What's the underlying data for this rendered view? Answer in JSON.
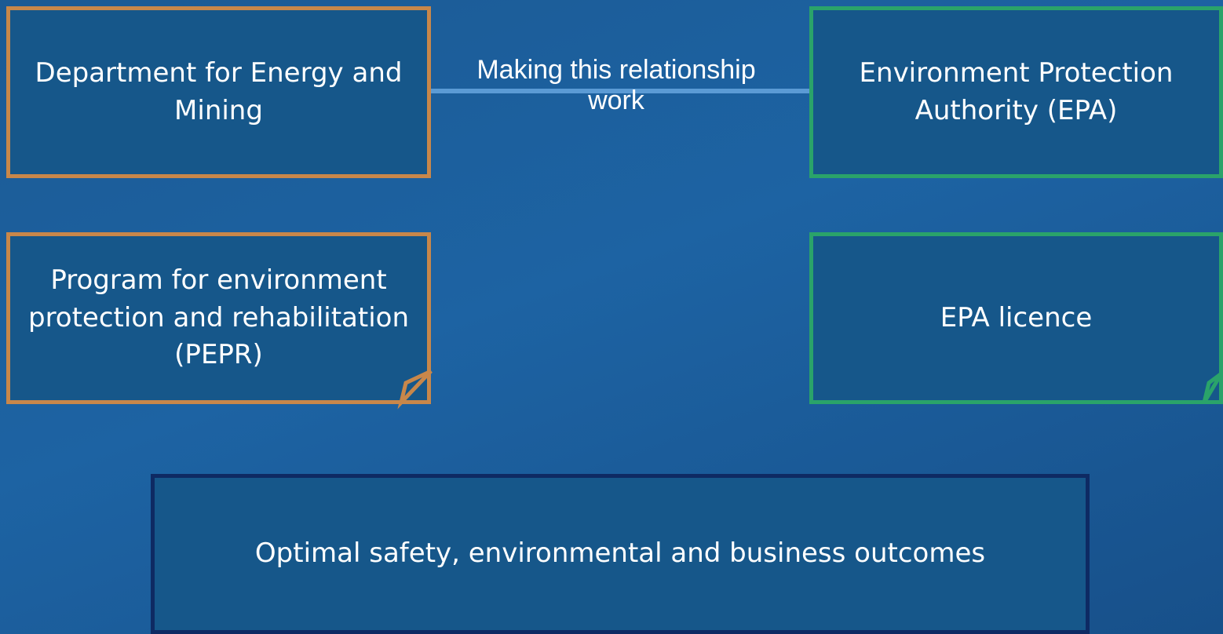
{
  "nodes": [
    {
      "label": "Department for Energy and Mining"
    },
    {
      "label": "Environment Protection Authority (EPA)"
    },
    {
      "label": "Program for environment protection and rehabilitation (PEPR)"
    },
    {
      "label": "EPA licence"
    },
    {
      "label": "Optimal safety, environmental and business outcomes"
    }
  ],
  "connector": {
    "label": "Making this relationship work"
  }
}
